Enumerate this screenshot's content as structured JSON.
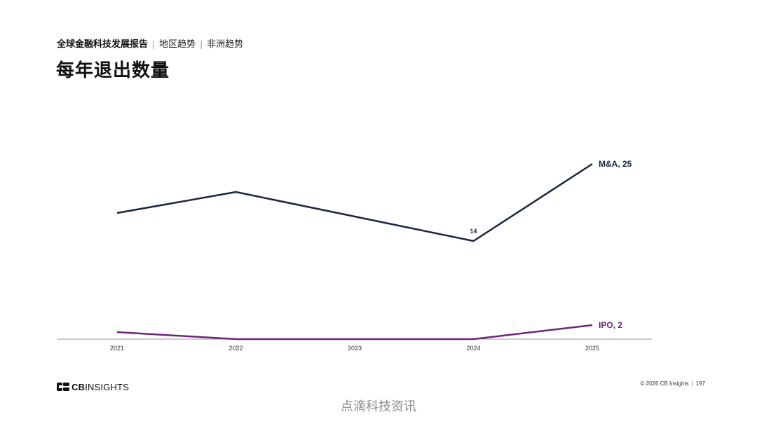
{
  "header": {
    "report": "全球金融科技发展报告",
    "crumbs": [
      "地区趋势",
      "非洲趋势"
    ],
    "separator": "|"
  },
  "title": "每年退出数量",
  "chart_data": {
    "type": "line",
    "x": [
      "2021",
      "2022",
      "2023",
      "2024",
      "2025"
    ],
    "series": [
      {
        "name": "M&A",
        "values": [
          18,
          21,
          17.5,
          14,
          25
        ],
        "color": "#1b2440"
      },
      {
        "name": "IPO",
        "values": [
          1,
          0,
          0,
          0,
          2
        ],
        "color": "#6c2477"
      }
    ],
    "data_labels": [
      {
        "series": "M&A",
        "x": "2024",
        "text": "14"
      },
      {
        "series": "M&A",
        "x": "2025",
        "text": "M&A, 25"
      },
      {
        "series": "IPO",
        "x": "2025",
        "text": "IPO, 2"
      }
    ],
    "ylim": [
      0,
      25
    ],
    "grid": false
  },
  "footer": {
    "logo_cb": "CB",
    "logo_insights": "INSIGHTS",
    "copyright": "© 2026 CB Insights",
    "page": "197"
  },
  "watermark": "点滴科技资讯"
}
